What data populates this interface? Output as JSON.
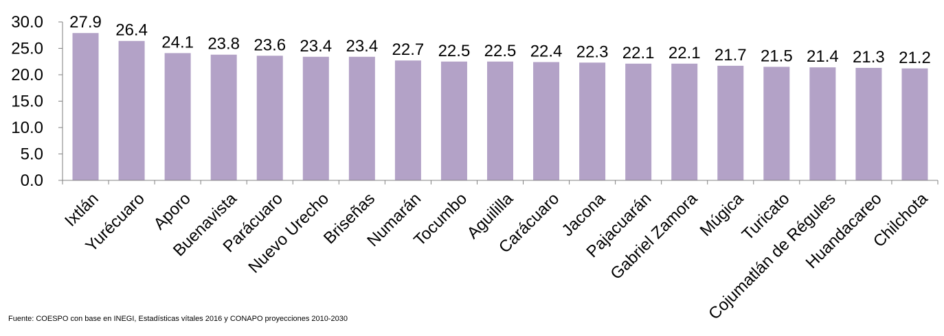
{
  "chart_data": {
    "type": "bar",
    "categories": [
      "Ixtlán",
      "Yurécuaro",
      "Aporo",
      "Buenavista",
      "Parácuaro",
      "Nuevo Urecho",
      "Briseñas",
      "Numarán",
      "Tocumbo",
      "Aguililla",
      "Carácuaro",
      "Jacona",
      "Pajacuarán",
      "Gabriel Zamora",
      "Múgica",
      "Turicato",
      "Cojumatlán de Régules",
      "Huandacareo",
      "Chilchota"
    ],
    "values": [
      27.9,
      26.4,
      24.1,
      23.8,
      23.6,
      23.4,
      23.4,
      22.7,
      22.5,
      22.5,
      22.4,
      22.3,
      22.1,
      22.1,
      21.7,
      21.5,
      21.4,
      21.3,
      21.2
    ],
    "data_labels": [
      "27.9",
      "26.4",
      "24.1",
      "23.8",
      "23.6",
      "23.4",
      "23.4",
      "22.7",
      "22.5",
      "22.5",
      "22.4",
      "22.3",
      "22.1",
      "22.1",
      "21.7",
      "21.5",
      "21.4",
      "21.3",
      "21.2"
    ],
    "title": "",
    "xlabel": "",
    "ylabel": "",
    "ylim": [
      0,
      30
    ],
    "yticks": [
      "0.0",
      "5.0",
      "10.0",
      "15.0",
      "20.0",
      "25.0",
      "30.0"
    ],
    "grid": false,
    "legend": "none",
    "bar_color": "#b3a2c7",
    "axis_color": "#7f7f7f"
  },
  "footer": {
    "source": "Fuente: COESPO con base en  INEGI, Estadísticas vítales 2016 y CONAPO proyecciones 2010-2030"
  }
}
